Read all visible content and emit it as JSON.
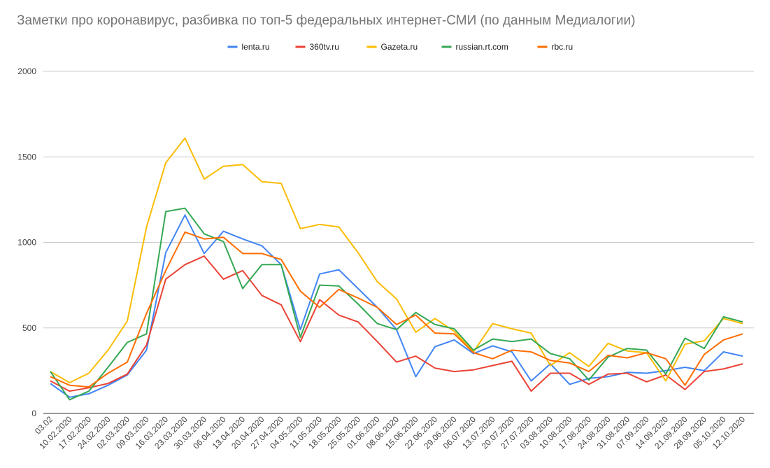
{
  "chart_data": {
    "type": "line",
    "title": "Заметки про коронавирус, разбивка по топ-5 федеральных интернет-СМИ (по данным Медиалогии)",
    "xlabel": "",
    "ylabel": "",
    "ylim": [
      0,
      2000
    ],
    "yticks": [
      "0",
      "500",
      "1000",
      "1500",
      "2000"
    ],
    "grid": true,
    "legend_position": "top",
    "categories": [
      "03.02",
      "10.02.2020",
      "17.02.2020",
      "24.02.2020",
      "02.03.2020",
      "09.03.2020",
      "16.03.2020",
      "23.03.2020",
      "30.03.2020",
      "06.04.2020",
      "13.04.2020",
      "20.04.2020",
      "27.04.2020",
      "04.05.2020",
      "11.05.2020",
      "18.05.2020",
      "25.05.2020",
      "01.06.2020",
      "08.06.2020",
      "15.06.2020",
      "22.06.2020",
      "29.06.2020",
      "06.07.2020",
      "13.07.2020",
      "20.07.2020",
      "27.07.2020",
      "03.08.2020",
      "10.08.2020",
      "17.08.2020",
      "24.08.2020",
      "31.08.2020",
      "07.09.2020",
      "14.09.2020",
      "21.09.2020",
      "28.09.2020",
      "05.10.2020",
      "12.10.2020"
    ],
    "series": [
      {
        "name": "lenta.ru",
        "color": "#4285f4",
        "values": [
          175,
          95,
          115,
          165,
          225,
          370,
          940,
          1160,
          935,
          1065,
          1020,
          980,
          870,
          490,
          815,
          840,
          730,
          620,
          490,
          215,
          390,
          430,
          350,
          395,
          360,
          190,
          290,
          170,
          205,
          215,
          240,
          235,
          250,
          270,
          250,
          360,
          335
        ]
      },
      {
        "name": "360tv.ru",
        "color": "#ea4335",
        "values": [
          190,
          130,
          150,
          175,
          230,
          400,
          785,
          870,
          920,
          785,
          835,
          690,
          635,
          420,
          665,
          575,
          535,
          420,
          300,
          335,
          265,
          245,
          255,
          280,
          305,
          130,
          235,
          235,
          170,
          230,
          235,
          185,
          225,
          140,
          245,
          260,
          290
        ]
      },
      {
        "name": "Gazeta.ru",
        "color": "#fbbc04",
        "values": [
          245,
          180,
          235,
          370,
          540,
          1090,
          1465,
          1610,
          1370,
          1445,
          1455,
          1355,
          1345,
          1080,
          1105,
          1090,
          940,
          770,
          670,
          475,
          555,
          480,
          360,
          525,
          495,
          470,
          280,
          355,
          275,
          410,
          365,
          355,
          190,
          405,
          425,
          555,
          525
        ]
      },
      {
        "name": "russian.rt.com",
        "color": "#34a853",
        "values": [
          245,
          80,
          130,
          270,
          415,
          465,
          1180,
          1200,
          1050,
          1005,
          730,
          870,
          870,
          445,
          750,
          745,
          640,
          525,
          490,
          590,
          520,
          495,
          370,
          435,
          420,
          435,
          350,
          320,
          195,
          330,
          380,
          370,
          230,
          440,
          380,
          565,
          535
        ]
      },
      {
        "name": "rbc.ru",
        "color": "#ff6d01",
        "values": [
          215,
          165,
          155,
          235,
          300,
          585,
          835,
          1060,
          1020,
          1030,
          935,
          935,
          900,
          715,
          620,
          725,
          675,
          620,
          520,
          575,
          470,
          465,
          355,
          320,
          370,
          360,
          310,
          295,
          245,
          340,
          325,
          355,
          320,
          165,
          345,
          430,
          465
        ]
      }
    ]
  }
}
